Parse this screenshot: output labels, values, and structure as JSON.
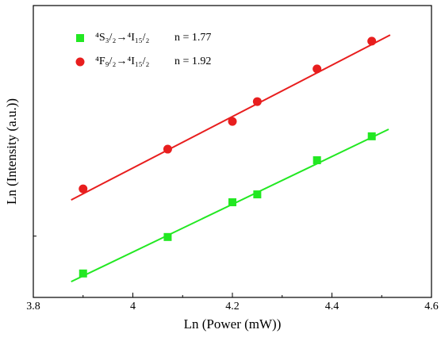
{
  "chart_data": {
    "type": "scatter",
    "xlabel": "Ln (Power (mW))",
    "ylabel": "Ln (Intensity (a.u.))",
    "xlim": [
      3.8,
      4.6
    ],
    "xticks": [
      3.8,
      4.0,
      4.2,
      4.4,
      4.6
    ],
    "xminorticks": [
      3.9,
      4.1,
      4.3,
      4.5
    ],
    "ylim": [
      0,
      10
    ],
    "yminorticks": [
      2.1
    ],
    "series": [
      {
        "name": "⁴S₃/₂→⁴I₁₅/₂",
        "annotation": "n = 1.77",
        "color": "#22e822",
        "marker": "square",
        "x": [
          3.9,
          4.07,
          4.2,
          4.25,
          4.37,
          4.48
        ],
        "values": [
          0.82,
          2.07,
          3.26,
          3.53,
          4.7,
          5.52
        ],
        "fit_x": [
          3.876,
          4.514
        ],
        "fit_values": [
          0.54,
          5.76
        ]
      },
      {
        "name": "⁴F₉/₂→⁴I₁₅/₂",
        "annotation": "n = 1.92",
        "color": "#e81e1e",
        "marker": "circle",
        "x": [
          3.9,
          4.07,
          4.2,
          4.25,
          4.37,
          4.48
        ],
        "values": [
          3.72,
          5.08,
          6.03,
          6.71,
          7.83,
          8.78
        ],
        "fit_x": [
          3.876,
          4.517
        ],
        "fit_values": [
          3.34,
          8.99
        ]
      }
    ]
  }
}
